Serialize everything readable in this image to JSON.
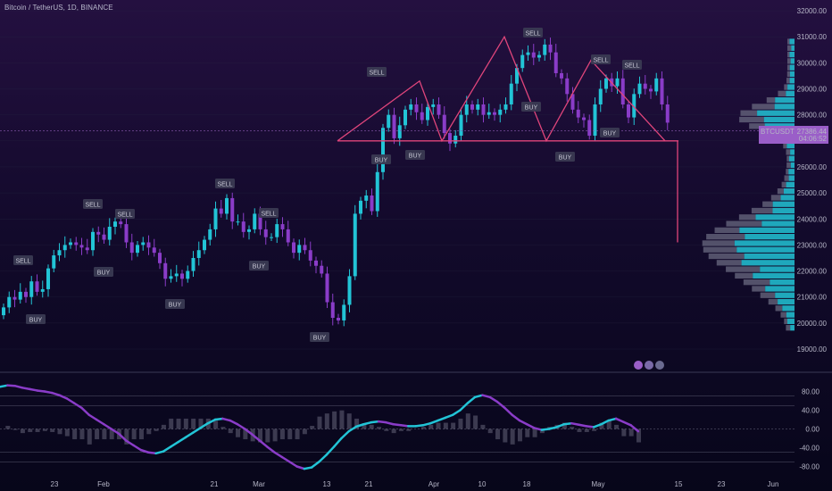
{
  "header": {
    "title": "Bitcoin / TetherUS, 1D, BINANCE"
  },
  "price_badges": {
    "symbol": "BTCUSDT",
    "price": "27386.44",
    "countdown": "04:06:52"
  },
  "colors": {
    "up": "#22c4d6",
    "down": "#8a3cc8",
    "pattern": "#e0457b",
    "grid": "#2a2a44"
  },
  "chart_data": [
    {
      "type": "candlestick",
      "title": "Bitcoin / TetherUS, 1D, BINANCE",
      "xlabel": "",
      "ylabel": "",
      "ylim": [
        19000,
        32000
      ],
      "y_ticks": [
        19000,
        20000,
        21000,
        22000,
        23000,
        24000,
        25000,
        26000,
        27000,
        28000,
        29000,
        30000,
        31000,
        32000
      ],
      "y_tick_labels": [
        "19000.00",
        "20000.00",
        "21000.00",
        "22000.00",
        "23000.00",
        "24000.00",
        "25000.00",
        "26000.00",
        "27000.00",
        "28000.00",
        "29000.00",
        "30000.00",
        "31000.00",
        "32000.00"
      ],
      "x_tick_labels": [
        "23",
        "Feb",
        "21",
        "Mar",
        "13",
        "21",
        "Apr",
        "10",
        "18",
        "May",
        "15",
        "23",
        "Jun"
      ],
      "close_series_approx": [
        20600,
        21000,
        20900,
        21200,
        21000,
        21600,
        21200,
        21300,
        22100,
        22600,
        22800,
        23000,
        23100,
        23000,
        22900,
        22800,
        23500,
        23400,
        23200,
        23700,
        23900,
        23800,
        23100,
        22700,
        23000,
        23100,
        22900,
        22700,
        22300,
        21700,
        21800,
        21900,
        21700,
        22000,
        22500,
        22800,
        23200,
        23600,
        24400,
        24200,
        24800,
        23900,
        23900,
        23500,
        23600,
        24200,
        23600,
        23300,
        23300,
        23800,
        23600,
        23100,
        22700,
        23000,
        22800,
        22400,
        22200,
        21900,
        20800,
        20200,
        20100,
        20700,
        21800,
        24200,
        24700,
        24900,
        24300,
        25800,
        27500,
        28000,
        27100,
        27600,
        28200,
        28400,
        28100,
        27800,
        28300,
        28400,
        28000,
        27300,
        26900,
        27200,
        28000,
        28400,
        28200,
        28400,
        28000,
        28100,
        28000,
        28200,
        28400,
        29200,
        29800,
        30300,
        30400,
        30200,
        30300,
        30700,
        30400,
        29600,
        29400,
        28800,
        28200,
        27900,
        27800,
        27200,
        28400,
        29000,
        29400,
        29100,
        29400,
        28400,
        27900,
        28800,
        29200,
        29000,
        28900,
        29400,
        28400,
        27700
      ],
      "annotations_sell": [
        "SELL",
        "SELL",
        "SELL",
        "SELL",
        "SELL",
        "SELL",
        "SELL",
        "SELL",
        "SELL"
      ],
      "annotations_buy": [
        "BUY",
        "BUY",
        "BUY",
        "BUY",
        "BUY",
        "BUY",
        "BUY",
        "BUY",
        "BUY",
        "BUY"
      ],
      "pattern_neckline": 27000,
      "pattern_target": 23100,
      "grid": true
    },
    {
      "type": "line",
      "xlabel": "",
      "ylabel": "",
      "ylim": [
        -90,
        95
      ],
      "y_ticks": [
        80,
        40,
        0,
        -40,
        -80
      ],
      "y_tick_labels": [
        "80.00",
        "40.00",
        "0.00",
        "-40.00",
        "-80.00"
      ],
      "levels": [
        70,
        50,
        -50,
        -70
      ],
      "series": [
        {
          "values": [
            90,
            93,
            92,
            88,
            85,
            82,
            80,
            77,
            72,
            65,
            55,
            45,
            30,
            20,
            10,
            0,
            -10,
            -25,
            -35,
            -45,
            -50,
            -52,
            -48,
            -38,
            -28,
            -18,
            -8,
            2,
            12,
            20,
            22,
            18,
            10,
            0,
            -12,
            -25,
            -38,
            -50,
            -60,
            -70,
            -80,
            -85,
            -82,
            -70,
            -55,
            -38,
            -20,
            -5,
            5,
            10,
            14,
            16,
            14,
            10,
            8,
            6,
            6,
            8,
            12,
            18,
            24,
            30,
            40,
            55,
            68,
            72,
            68,
            58,
            45,
            30,
            18,
            10,
            2,
            -2,
            0,
            4,
            10,
            12,
            9,
            6,
            4,
            10,
            18,
            22,
            15,
            8,
            -5
          ]
        }
      ]
    }
  ]
}
